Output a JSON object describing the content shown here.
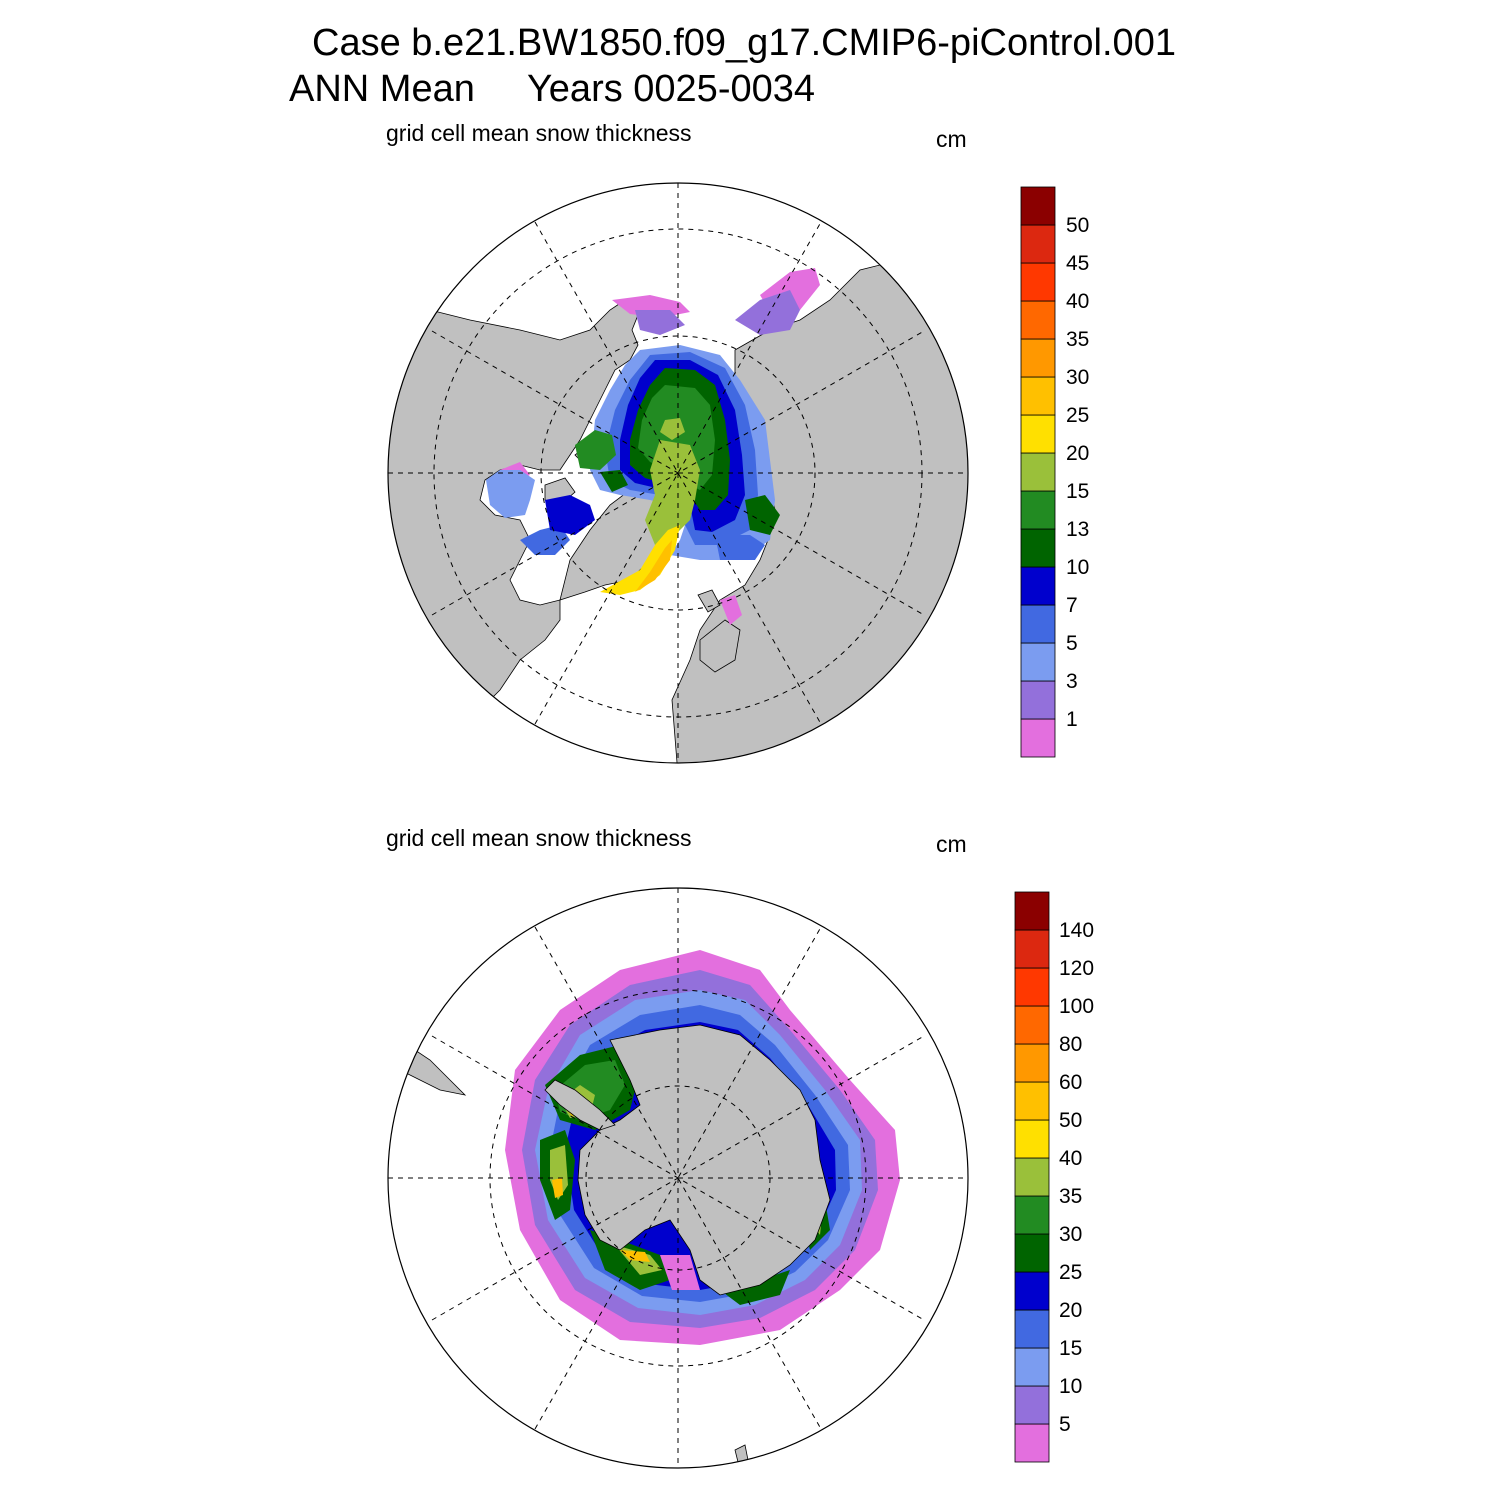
{
  "header": {
    "title_line1": "Case b.e21.BW1850.f09_g17.CMIP6-piControl.001",
    "title_line2": "ANN Mean     Years 0025-0034"
  },
  "colors": {
    "land": "#c0c0c0",
    "ocean": "#ffffff"
  },
  "panels": [
    {
      "id": "nh",
      "title": "grid cell mean snow thickness",
      "unit": "cm",
      "hemisphere": "north",
      "colorbar": {
        "levels": [
          "1",
          "3",
          "5",
          "7",
          "10",
          "13",
          "15",
          "20",
          "25",
          "30",
          "35",
          "40",
          "45",
          "50"
        ],
        "colors": [
          "#e36fde",
          "#9370db",
          "#7b9cf0",
          "#4169e1",
          "#0000cd",
          "#006400",
          "#228b22",
          "#9ac03a",
          "#ffe000",
          "#ffc000",
          "#ff9800",
          "#ff6800",
          "#ff3800",
          "#dc2810",
          "#8b0000"
        ]
      }
    },
    {
      "id": "sh",
      "title": "grid cell mean snow thickness",
      "unit": "cm",
      "hemisphere": "south",
      "colorbar": {
        "levels": [
          "5",
          "10",
          "15",
          "20",
          "25",
          "30",
          "35",
          "40",
          "50",
          "60",
          "80",
          "100",
          "120",
          "140"
        ],
        "colors": [
          "#e36fde",
          "#9370db",
          "#7b9cf0",
          "#4169e1",
          "#0000cd",
          "#006400",
          "#228b22",
          "#9ac03a",
          "#ffe000",
          "#ffc000",
          "#ff9800",
          "#ff6800",
          "#ff3800",
          "#dc2810",
          "#8b0000"
        ]
      }
    }
  ]
}
